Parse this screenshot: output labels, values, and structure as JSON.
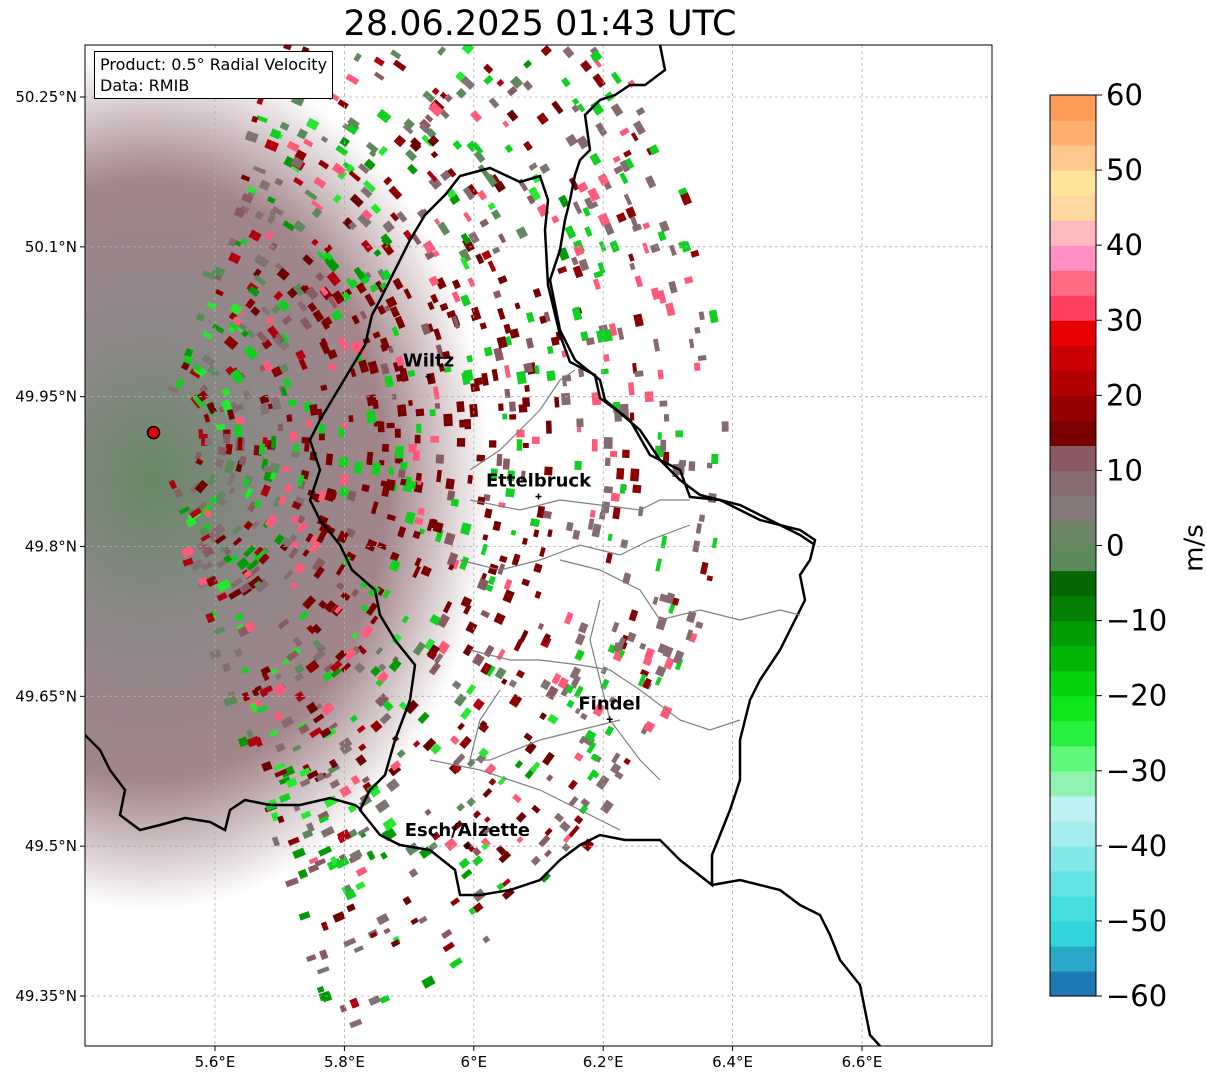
{
  "title": "28.06.2025 01:43 UTC",
  "info": {
    "product": "Product: 0.5° Radial Velocity",
    "data": "Data: RMIB"
  },
  "map": {
    "lon_range": [
      5.4,
      6.8
    ],
    "lat_range": [
      49.3,
      50.3
    ],
    "x_ticks": [
      {
        "value": 5.6,
        "label": "5.6°E"
      },
      {
        "value": 5.8,
        "label": "5.8°E"
      },
      {
        "value": 6.0,
        "label": "6°E"
      },
      {
        "value": 6.2,
        "label": "6.2°E"
      },
      {
        "value": 6.4,
        "label": "6.4°E"
      },
      {
        "value": 6.6,
        "label": "6.6°E"
      }
    ],
    "y_ticks": [
      {
        "value": 50.25,
        "label": "50.25°N"
      },
      {
        "value": 50.1,
        "label": "50.1°N"
      },
      {
        "value": 49.95,
        "label": "49.95°N"
      },
      {
        "value": 49.8,
        "label": "49.8°N"
      },
      {
        "value": 49.65,
        "label": "49.65°N"
      },
      {
        "value": 49.5,
        "label": "49.5°N"
      },
      {
        "value": 49.35,
        "label": "49.35°N"
      }
    ],
    "radar_site": {
      "lon": 5.505,
      "lat": 49.914
    },
    "cities": [
      {
        "name": "Wiltz",
        "lon": 5.93,
        "lat": 49.97
      },
      {
        "name": "Ettelbruck",
        "lon": 6.1,
        "lat": 49.85
      },
      {
        "name": "Findel",
        "lon": 6.21,
        "lat": 49.627
      },
      {
        "name": "Esch/Alzette",
        "lon": 5.99,
        "lat": 49.5
      }
    ]
  },
  "colorbar": {
    "min": -60,
    "max": 60,
    "ticks": [
      60,
      50,
      40,
      30,
      20,
      10,
      0,
      -10,
      -20,
      -30,
      -40,
      -50,
      -60
    ],
    "tick_labels": [
      "60",
      "50",
      "40",
      "30",
      "20",
      "10",
      "0",
      "−10",
      "−20",
      "−30",
      "−40",
      "−50",
      "−60"
    ],
    "unit": "m/s",
    "colors": [
      "#1f78b4",
      "#2aa7c9",
      "#33d4dc",
      "#48dfe0",
      "#64e3e4",
      "#84e8e9",
      "#a6eeee",
      "#bdf2f0",
      "#90f2b0",
      "#5ff87a",
      "#28f040",
      "#11e51b",
      "#04d30d",
      "#03b708",
      "#039b06",
      "#047e05",
      "#036603",
      "#5c8a5d",
      "#6c8466",
      "#847878",
      "#876c72",
      "#8a5a62",
      "#7a0000",
      "#950000",
      "#b00000",
      "#cb0000",
      "#e60000",
      "#ff4060",
      "#ff6a84",
      "#ff90c4",
      "#ffb8c0",
      "#ffd8a0",
      "#ffe59a",
      "#ffc890",
      "#ffb070",
      "#ff9c58"
    ]
  }
}
